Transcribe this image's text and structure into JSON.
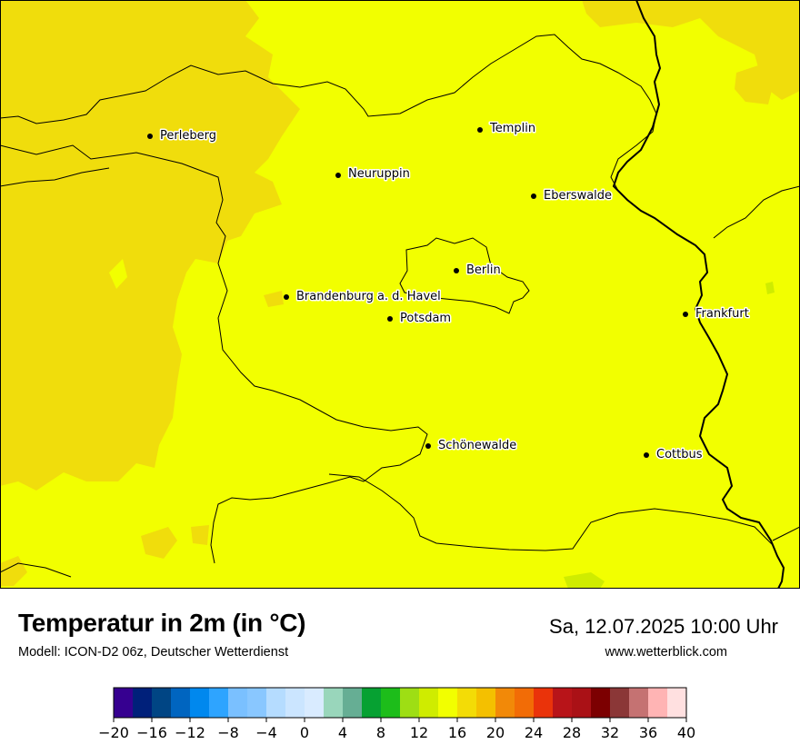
{
  "header": {
    "title": "Temperatur in 2m (in °C)",
    "model": "Modell: ICON-D2 06z, Deutscher Wetterdienst",
    "datetime": "Sa, 12.07.2025 10:00 Uhr",
    "website": "www.wetterblick.com"
  },
  "map": {
    "cities": [
      {
        "name": "Perleberg"
      },
      {
        "name": "Templin"
      },
      {
        "name": "Neuruppin"
      },
      {
        "name": "Eberswalde"
      },
      {
        "name": "Berlin"
      },
      {
        "name": "Brandenburg a. d. Havel"
      },
      {
        "name": "Potsdam"
      },
      {
        "name": "Frankfurt"
      },
      {
        "name": "Schönewalde"
      },
      {
        "name": "Cottbus"
      }
    ],
    "fill_colors": {
      "dominant": "#f2ff00",
      "warmer": "#f0dd0c"
    }
  },
  "legend": {
    "ticks": [
      "−20",
      "−16",
      "−12",
      "−8",
      "−4",
      "0",
      "4",
      "8",
      "12",
      "16",
      "20",
      "24",
      "28",
      "32",
      "36",
      "40"
    ],
    "colors": [
      "#360090",
      "#00207a",
      "#004584",
      "#0065c0",
      "#0088ee",
      "#2ea4ff",
      "#7ac0ff",
      "#89c7ff",
      "#b5dcff",
      "#cbe5ff",
      "#d9ebff",
      "#99d6bb",
      "#66ae94",
      "#06a132",
      "#1dbd1a",
      "#9ede14",
      "#cfec00",
      "#f2ff00",
      "#f3dc06",
      "#f4c000",
      "#f28908",
      "#f26c06",
      "#ea330a",
      "#b81419",
      "#aa1116",
      "#7c0001",
      "#8b3737",
      "#c57272",
      "#ffb4b4",
      "#ffe0e0"
    ]
  }
}
